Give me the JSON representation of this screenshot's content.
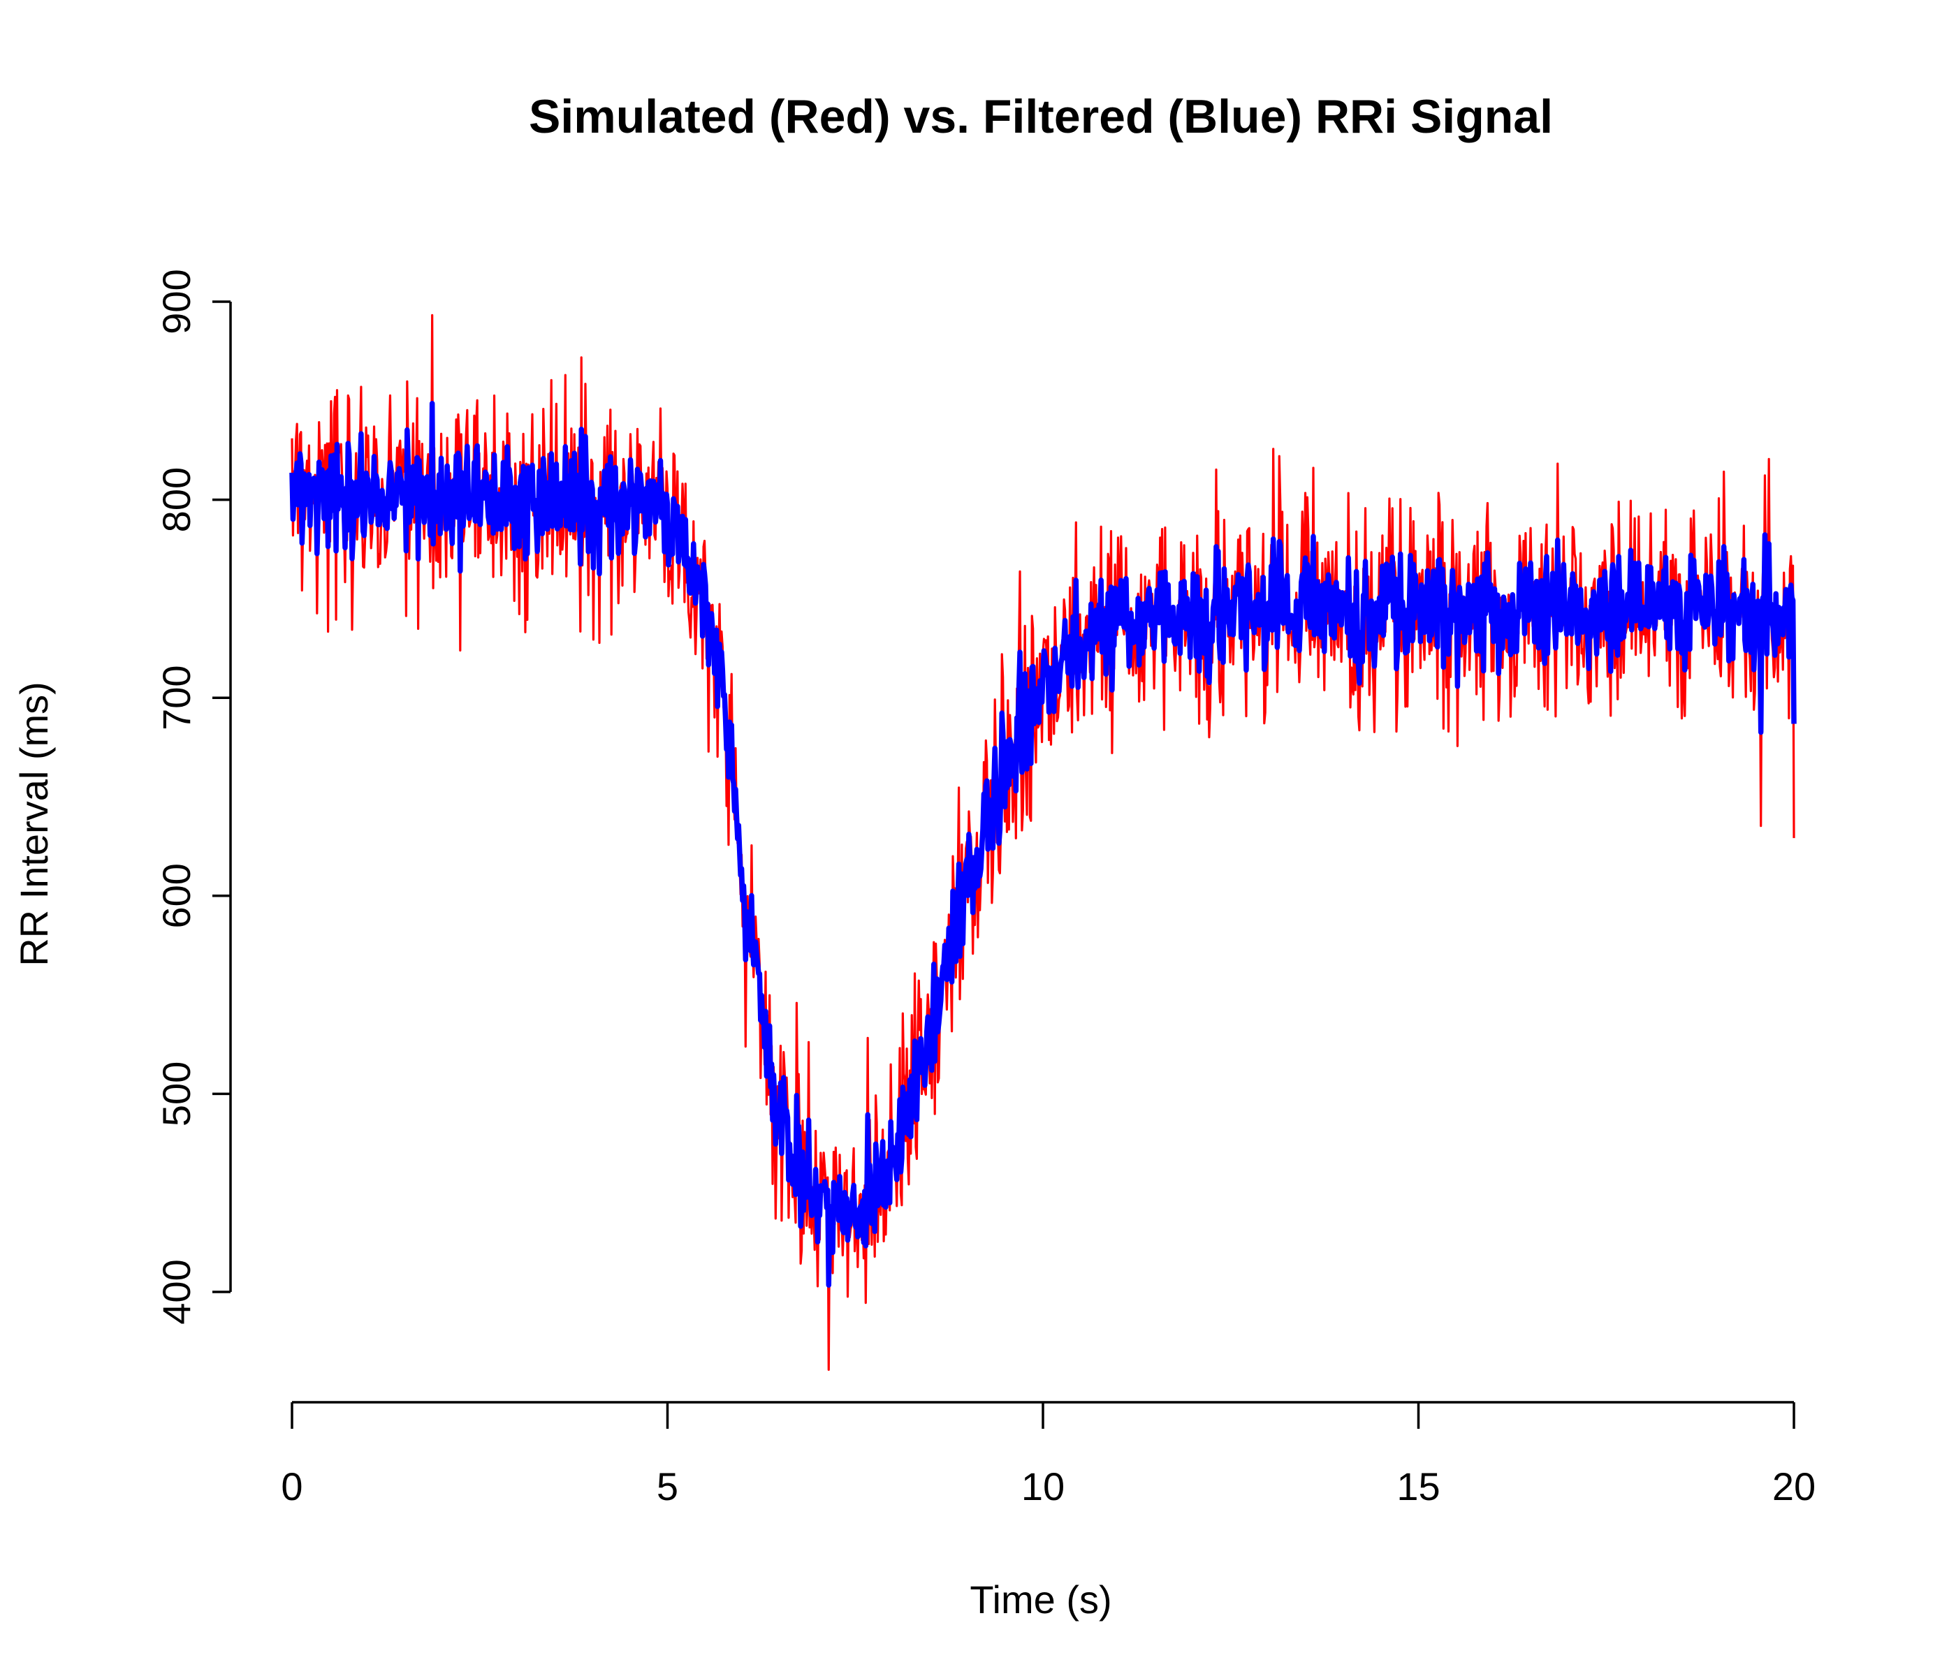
{
  "chart_data": {
    "type": "line",
    "title": "Simulated (Red) vs. Filtered (Blue) RRi Signal",
    "xlabel": "Time (s)",
    "ylabel": "RR Interval (ms)",
    "xlim": [
      0,
      20
    ],
    "ylim": [
      400,
      900
    ],
    "xticks": [
      0,
      5,
      10,
      15,
      20
    ],
    "yticks": [
      400,
      500,
      600,
      700,
      800,
      900
    ],
    "grid": false,
    "legend": "none",
    "colors": {
      "simulated": "#ff0000",
      "filtered": "#0000ff",
      "axis": "#000000"
    },
    "series": [
      {
        "key": "simulated",
        "x": [
          0,
          0.25,
          0.5,
          0.75,
          1,
          1.25,
          1.5,
          1.75,
          2,
          2.25,
          2.5,
          2.75,
          3,
          3.25,
          3.5,
          3.75,
          4,
          4.25,
          4.5,
          4.75,
          5,
          5.25,
          5.5,
          5.75,
          6,
          6.25,
          6.5,
          6.75,
          7,
          7.25,
          7.5,
          7.75,
          8,
          8.25,
          8.5,
          8.75,
          9,
          9.25,
          9.5,
          9.75,
          10,
          10.25,
          10.5,
          10.75,
          11,
          11.25,
          11.5,
          11.75,
          12,
          12.25,
          12.5,
          12.75,
          13,
          13.25,
          13.5,
          13.75,
          14,
          14.25,
          14.5,
          14.75,
          15,
          15.25,
          15.5,
          15.75,
          16,
          16.25,
          16.5,
          16.75,
          17,
          17.25,
          17.5,
          17.75,
          18,
          18.25,
          18.5,
          18.75,
          19,
          19.25,
          19.5,
          19.75,
          20
        ],
        "y": [
          805,
          803,
          801,
          800,
          800,
          801,
          802,
          803,
          803,
          803,
          803,
          803,
          803,
          802,
          802,
          801,
          800,
          800,
          799,
          797,
          792,
          780,
          755,
          700,
          610,
          545,
          490,
          460,
          445,
          440,
          442,
          450,
          465,
          495,
          530,
          570,
          608,
          640,
          665,
          690,
          705,
          718,
          728,
          734,
          738,
          740,
          741,
          742,
          742,
          742,
          743,
          743,
          744,
          744,
          744,
          744,
          745,
          745,
          745,
          745,
          745,
          745,
          745,
          745,
          745,
          745,
          745,
          745,
          745,
          745,
          745,
          745,
          745,
          745,
          745,
          745,
          745,
          745,
          745,
          745,
          745
        ],
        "noise_sd": 28
      },
      {
        "key": "filtered",
        "x": [
          0,
          0.25,
          0.5,
          0.75,
          1,
          1.25,
          1.5,
          1.75,
          2,
          2.25,
          2.5,
          2.75,
          3,
          3.25,
          3.5,
          3.75,
          4,
          4.25,
          4.5,
          4.75,
          5,
          5.25,
          5.5,
          5.75,
          6,
          6.25,
          6.5,
          6.75,
          7,
          7.25,
          7.5,
          7.75,
          8,
          8.25,
          8.5,
          8.75,
          9,
          9.25,
          9.5,
          9.75,
          10,
          10.25,
          10.5,
          10.75,
          11,
          11.25,
          11.5,
          11.75,
          12,
          12.25,
          12.5,
          12.75,
          13,
          13.25,
          13.5,
          13.75,
          14,
          14.25,
          14.5,
          14.75,
          15,
          15.25,
          15.5,
          15.75,
          16,
          16.25,
          16.5,
          16.75,
          17,
          17.25,
          17.5,
          17.75,
          18,
          18.25,
          18.5,
          18.75,
          19,
          19.25,
          19.5,
          19.75,
          20
        ],
        "y": [
          805,
          803,
          801,
          800,
          800,
          801,
          802,
          803,
          803,
          803,
          803,
          803,
          803,
          802,
          802,
          801,
          800,
          800,
          799,
          797,
          792,
          780,
          755,
          700,
          610,
          545,
          490,
          460,
          445,
          440,
          442,
          450,
          465,
          495,
          530,
          570,
          608,
          640,
          665,
          690,
          705,
          718,
          728,
          734,
          738,
          740,
          741,
          742,
          742,
          742,
          743,
          743,
          744,
          744,
          744,
          744,
          745,
          745,
          745,
          745,
          745,
          745,
          745,
          745,
          745,
          745,
          745,
          745,
          745,
          745,
          745,
          745,
          745,
          745,
          745,
          745,
          745,
          745,
          745,
          745,
          745
        ],
        "noise_sd": 17
      }
    ]
  }
}
